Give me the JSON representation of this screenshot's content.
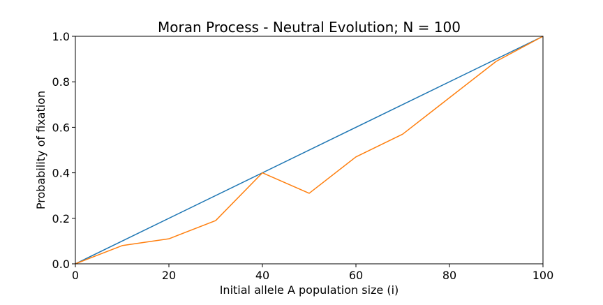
{
  "chart_data": {
    "type": "line",
    "title": "Moran Process - Neutral Evolution; N = 100",
    "xlabel": "Initial allele A population size (i)",
    "ylabel": "Probability of fixation",
    "xlim": [
      0,
      100
    ],
    "ylim": [
      0,
      1
    ],
    "xticks": [
      "0",
      "20",
      "40",
      "60",
      "80",
      "100"
    ],
    "yticks": [
      "0.0",
      "0.2",
      "0.4",
      "0.6",
      "0.8",
      "1.0"
    ],
    "grid": false,
    "legend": "none",
    "series": [
      {
        "color": "#1f77b4",
        "x": [
          0,
          100
        ],
        "y": [
          0.0,
          1.0
        ]
      },
      {
        "color": "#ff7f0e",
        "x": [
          0,
          10,
          20,
          30,
          40,
          50,
          60,
          70,
          80,
          90,
          100
        ],
        "y": [
          0.0,
          0.08,
          0.11,
          0.19,
          0.4,
          0.31,
          0.47,
          0.57,
          0.73,
          0.89,
          1.0
        ]
      }
    ]
  }
}
